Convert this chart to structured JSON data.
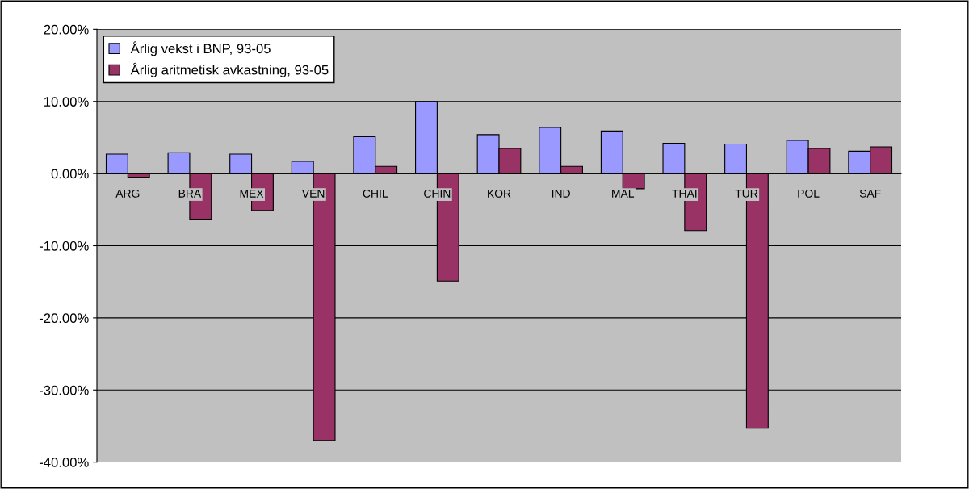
{
  "chart_data": {
    "type": "bar",
    "categories": [
      "ARG",
      "BRA",
      "MEX",
      "VEN",
      "CHIL",
      "CHIN",
      "KOR",
      "IND",
      "MAL",
      "THAI",
      "TUR",
      "POL",
      "SAF"
    ],
    "series": [
      {
        "name": "Årlig vekst i BNP, 93-05",
        "color": "#9999ff",
        "values": [
          2.7,
          2.9,
          2.7,
          1.7,
          5.1,
          10.0,
          5.4,
          6.4,
          5.9,
          4.2,
          4.1,
          4.6,
          3.1
        ]
      },
      {
        "name": "Årlig aritmetisk avkastning, 93-05",
        "color": "#993366",
        "values": [
          -0.5,
          -6.4,
          -5.1,
          -37.0,
          1.0,
          -14.9,
          3.5,
          1.0,
          -2.1,
          -7.9,
          -35.3,
          3.5,
          3.7
        ]
      }
    ],
    "ylim": [
      -40,
      20
    ],
    "yticks": [
      {
        "value": -40,
        "label": "-40.00%"
      },
      {
        "value": -30,
        "label": "-30.00%"
      },
      {
        "value": -20,
        "label": "-20.00%"
      },
      {
        "value": -10,
        "label": "-10.00%"
      },
      {
        "value": 0,
        "label": "0.00%"
      },
      {
        "value": 10,
        "label": "10.00%"
      },
      {
        "value": 20,
        "label": "20.00%"
      }
    ],
    "grid": "y",
    "legend": "top left"
  }
}
